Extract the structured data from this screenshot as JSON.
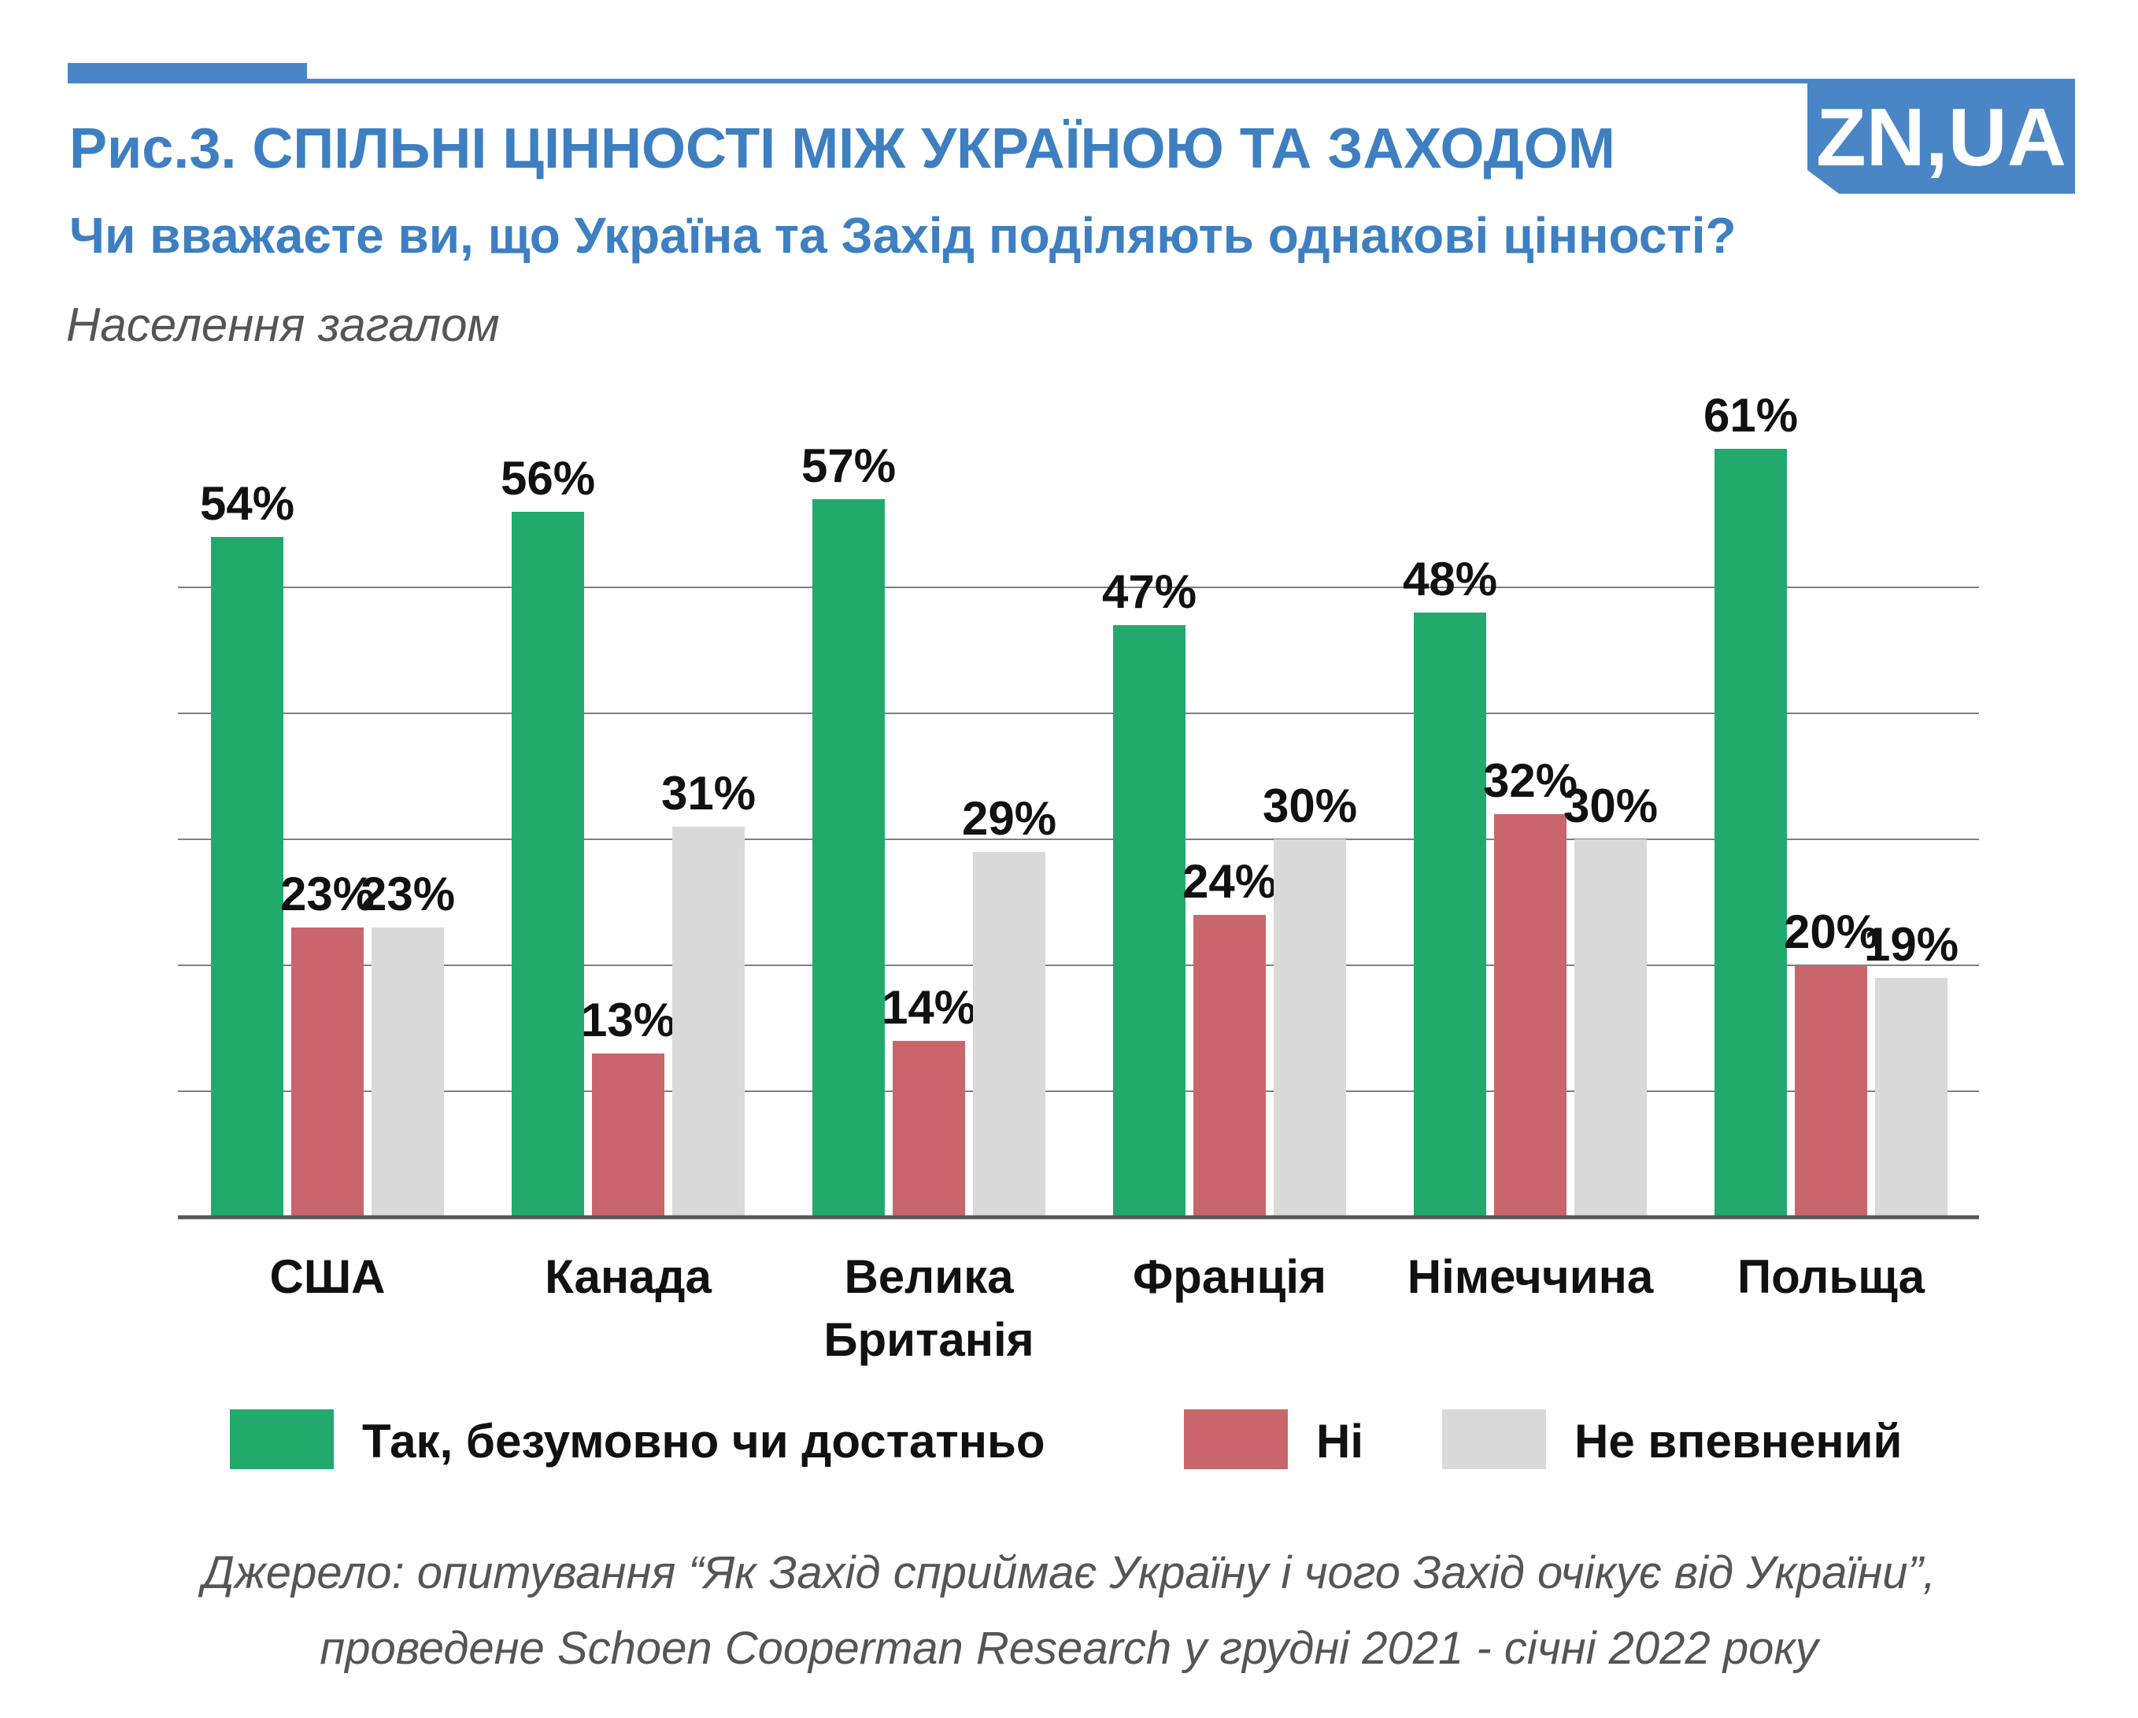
{
  "header": {
    "title": "Рис.3. СПІЛЬНІ ЦІННОСТІ МІЖ УКРАЇНОЮ ТА ЗАХОДОМ",
    "subtitle": "Чи вважаєте ви, що Україна та Захід поділяють однакові цінності?",
    "population": "Населення загалом",
    "logo": "ZN,UA"
  },
  "colors": {
    "brand_blue": "#4a86c5",
    "yes": "#22aa6d",
    "no": "#c9666c",
    "unsure": "#d9d9d9"
  },
  "chart_data": {
    "type": "bar",
    "title": "Рис.3. СПІЛЬНІ ЦІННОСТІ МІЖ УКРАЇНОЮ ТА ЗАХОДОМ",
    "subtitle": "Чи вважаєте ви, що Україна та Захід поділяють однакові цінності?",
    "categories": [
      "США",
      "Канада",
      "Велика Британія",
      "Франція",
      "Німеччина",
      "Польща"
    ],
    "series": [
      {
        "name": "Так, безумовно чи достатньо",
        "color": "#22aa6d",
        "values": [
          54,
          56,
          57,
          47,
          48,
          61
        ]
      },
      {
        "name": "Ні",
        "color": "#c9666c",
        "values": [
          23,
          13,
          14,
          24,
          32,
          20
        ]
      },
      {
        "name": "Не впевнений",
        "color": "#d9d9d9",
        "values": [
          23,
          31,
          29,
          30,
          30,
          19
        ]
      }
    ],
    "value_suffix": "%",
    "ylim": [
      0,
      60
    ],
    "ygrid_step": 10,
    "grid": true,
    "legend": "bottom",
    "xlabel": "",
    "ylabel": ""
  },
  "legend": {
    "items": [
      {
        "label": "Так, безумовно чи достатньо",
        "color": "#22aa6d"
      },
      {
        "label": "Ні",
        "color": "#c9666c"
      },
      {
        "label": "Не впевнений",
        "color": "#d9d9d9"
      }
    ]
  },
  "source": {
    "line1": "Джерело: опитування “Як Захід сприймає Україну і чого Захід очікує від України”,",
    "line2": "проведене Schoen Cooperman Research у грудні 2021 - січні 2022 року"
  }
}
